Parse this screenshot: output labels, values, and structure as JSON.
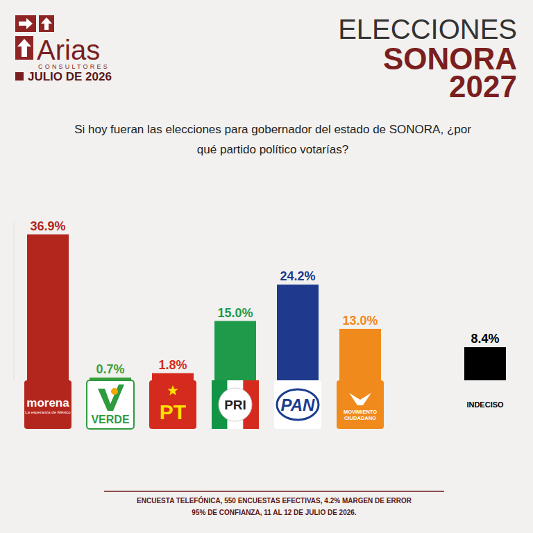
{
  "header": {
    "brand": "Arias",
    "brand_sub": "CONSULTORES",
    "date": "JULIO DE 2026",
    "heading": "ELECCIONES",
    "state": "SONORA",
    "year": "2027"
  },
  "chart_data": {
    "type": "bar",
    "title": "Si hoy fueran las elecciones para gobernador del estado de SONORA, ¿por qué partido político votarías?",
    "categories": [
      "morena",
      "VERDE",
      "PT",
      "PRI",
      "PAN",
      "MOVIMIENTO CIUDADANO",
      "INDECISO"
    ],
    "values": [
      36.9,
      0.7,
      1.8,
      15.0,
      24.2,
      13.0,
      8.4
    ],
    "value_labels": [
      "36.9%",
      "0.7%",
      "1.8%",
      "15.0%",
      "24.2%",
      "13.0%",
      "8.4%"
    ],
    "colors": [
      "#b3261e",
      "#3a9f3a",
      "#d62a1e",
      "#1e9a4a",
      "#1f3a8c",
      "#f08a1c",
      "#000000"
    ],
    "ylim": [
      0,
      40
    ],
    "data_labels": true,
    "tick_labels": "x",
    "annotations": [
      "La esperanza de México"
    ]
  },
  "footer": {
    "lines": [
      "ENCUESTA TELEFÓNICA, 550 ENCUESTAS EFECTIVAS, 4.2%  MARGEN DE ERROR",
      "95% DE CONFIANZA, 11 AL 12 DE JULIO DE 2026."
    ]
  }
}
